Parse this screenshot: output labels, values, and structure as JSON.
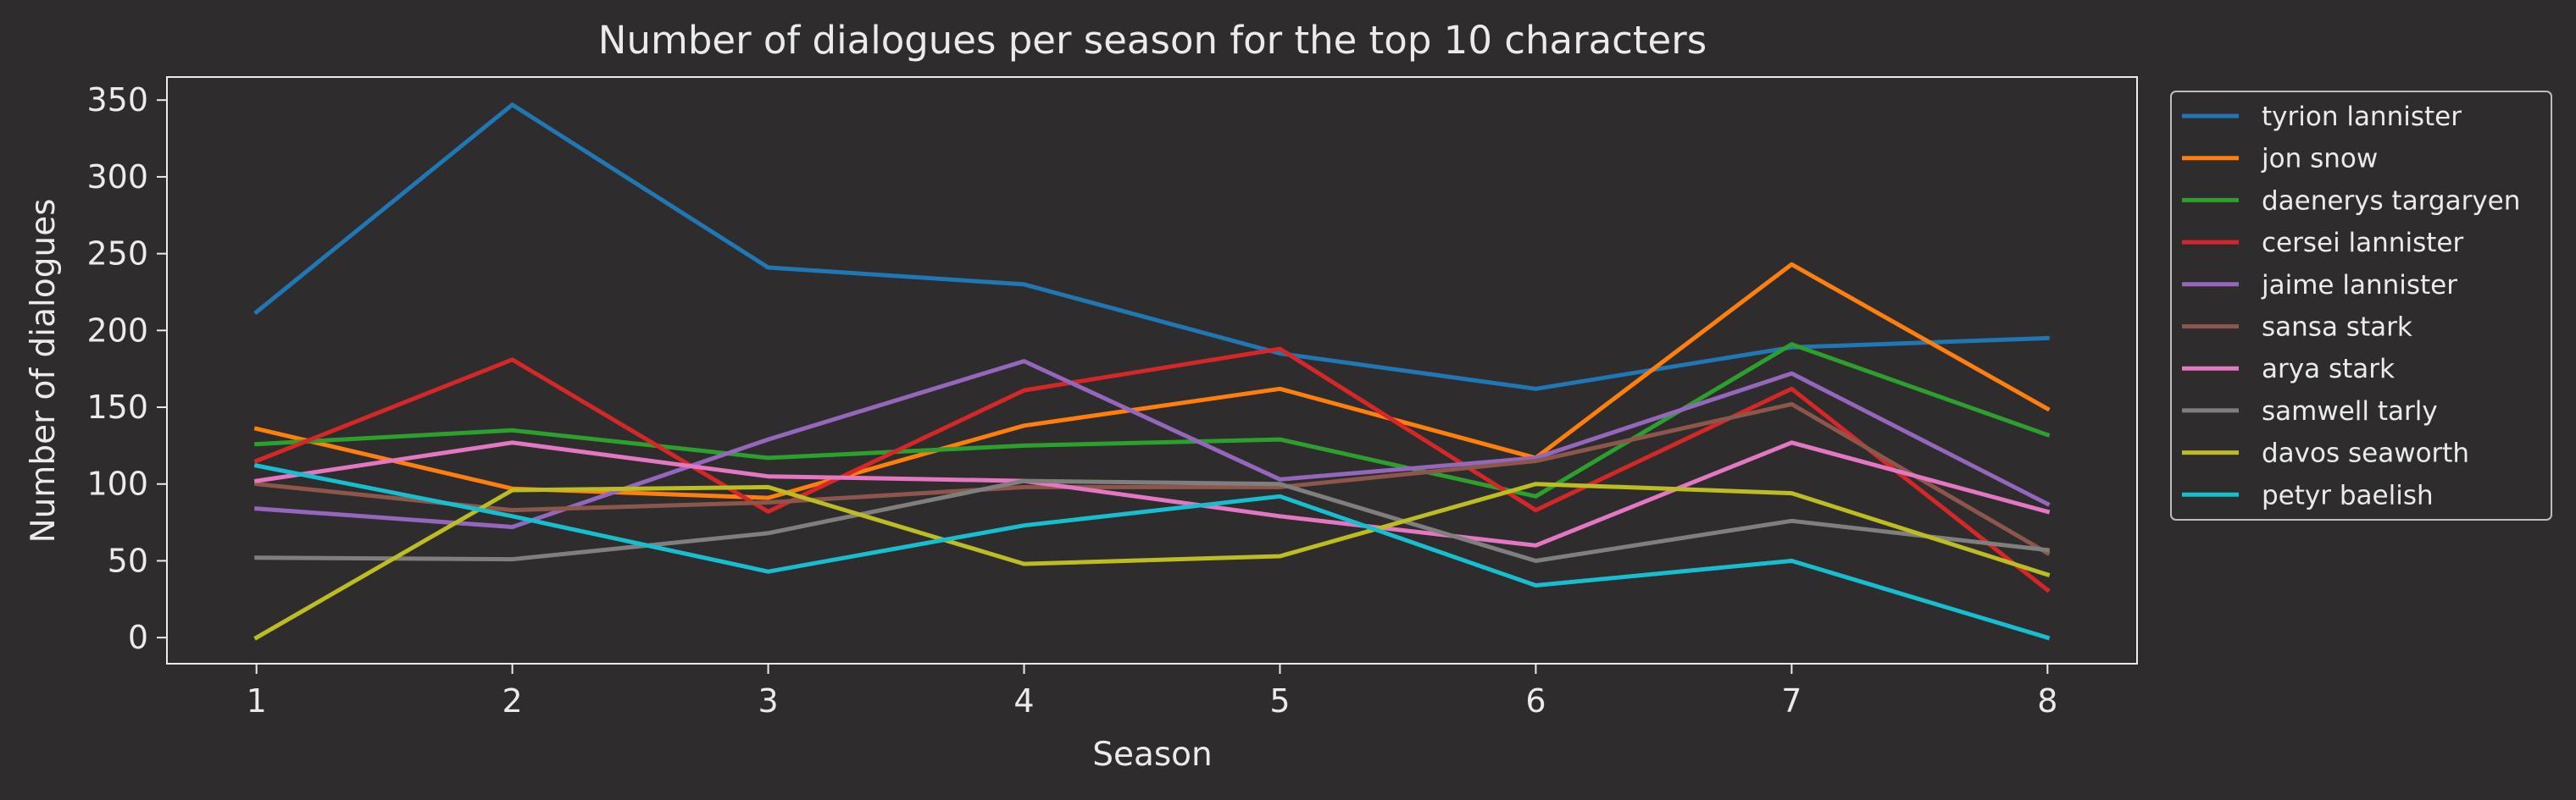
{
  "chart_data": {
    "type": "line",
    "title": "Number of dialogues per season for the top 10 characters",
    "xlabel": "Season",
    "ylabel": "Number of dialogues",
    "x": [
      1,
      2,
      3,
      4,
      5,
      6,
      7,
      8
    ],
    "x_ticks": [
      "1",
      "2",
      "3",
      "4",
      "5",
      "6",
      "7",
      "8"
    ],
    "y_ticks": [
      "0",
      "50",
      "100",
      "150",
      "200",
      "250",
      "300",
      "350"
    ],
    "xlim": [
      0.65,
      8.35
    ],
    "ylim": [
      -17,
      365
    ],
    "grid": false,
    "legend_position": "outside-upper-right",
    "background_color": "#2e2c2d",
    "text_color": "#ebebeb",
    "series": [
      {
        "name": "tyrion lannister",
        "color": "#1f77b4",
        "values": [
          212,
          347,
          241,
          230,
          185,
          162,
          189,
          195
        ]
      },
      {
        "name": "jon snow",
        "color": "#ff7f0e",
        "values": [
          136,
          97,
          91,
          138,
          162,
          117,
          243,
          149
        ]
      },
      {
        "name": "daenerys targaryen",
        "color": "#2ca02c",
        "values": [
          126,
          135,
          117,
          125,
          129,
          92,
          191,
          132
        ]
      },
      {
        "name": "cersei lannister",
        "color": "#d62728",
        "values": [
          115,
          181,
          82,
          161,
          188,
          83,
          162,
          31
        ]
      },
      {
        "name": "jaime lannister",
        "color": "#9467bd",
        "values": [
          84,
          72,
          129,
          180,
          103,
          117,
          172,
          87
        ]
      },
      {
        "name": "sansa stark",
        "color": "#8c564b",
        "values": [
          100,
          83,
          88,
          98,
          98,
          115,
          152,
          55
        ]
      },
      {
        "name": "arya stark",
        "color": "#e377c2",
        "values": [
          102,
          127,
          105,
          102,
          79,
          60,
          127,
          82
        ]
      },
      {
        "name": "samwell tarly",
        "color": "#7f7f7f",
        "values": [
          52,
          51,
          68,
          102,
          100,
          50,
          76,
          57
        ]
      },
      {
        "name": "davos seaworth",
        "color": "#bcbd22",
        "values": [
          0,
          96,
          98,
          48,
          53,
          100,
          94,
          41
        ]
      },
      {
        "name": "petyr baelish",
        "color": "#17becf",
        "values": [
          112,
          79,
          43,
          73,
          92,
          34,
          50,
          0
        ]
      }
    ]
  }
}
